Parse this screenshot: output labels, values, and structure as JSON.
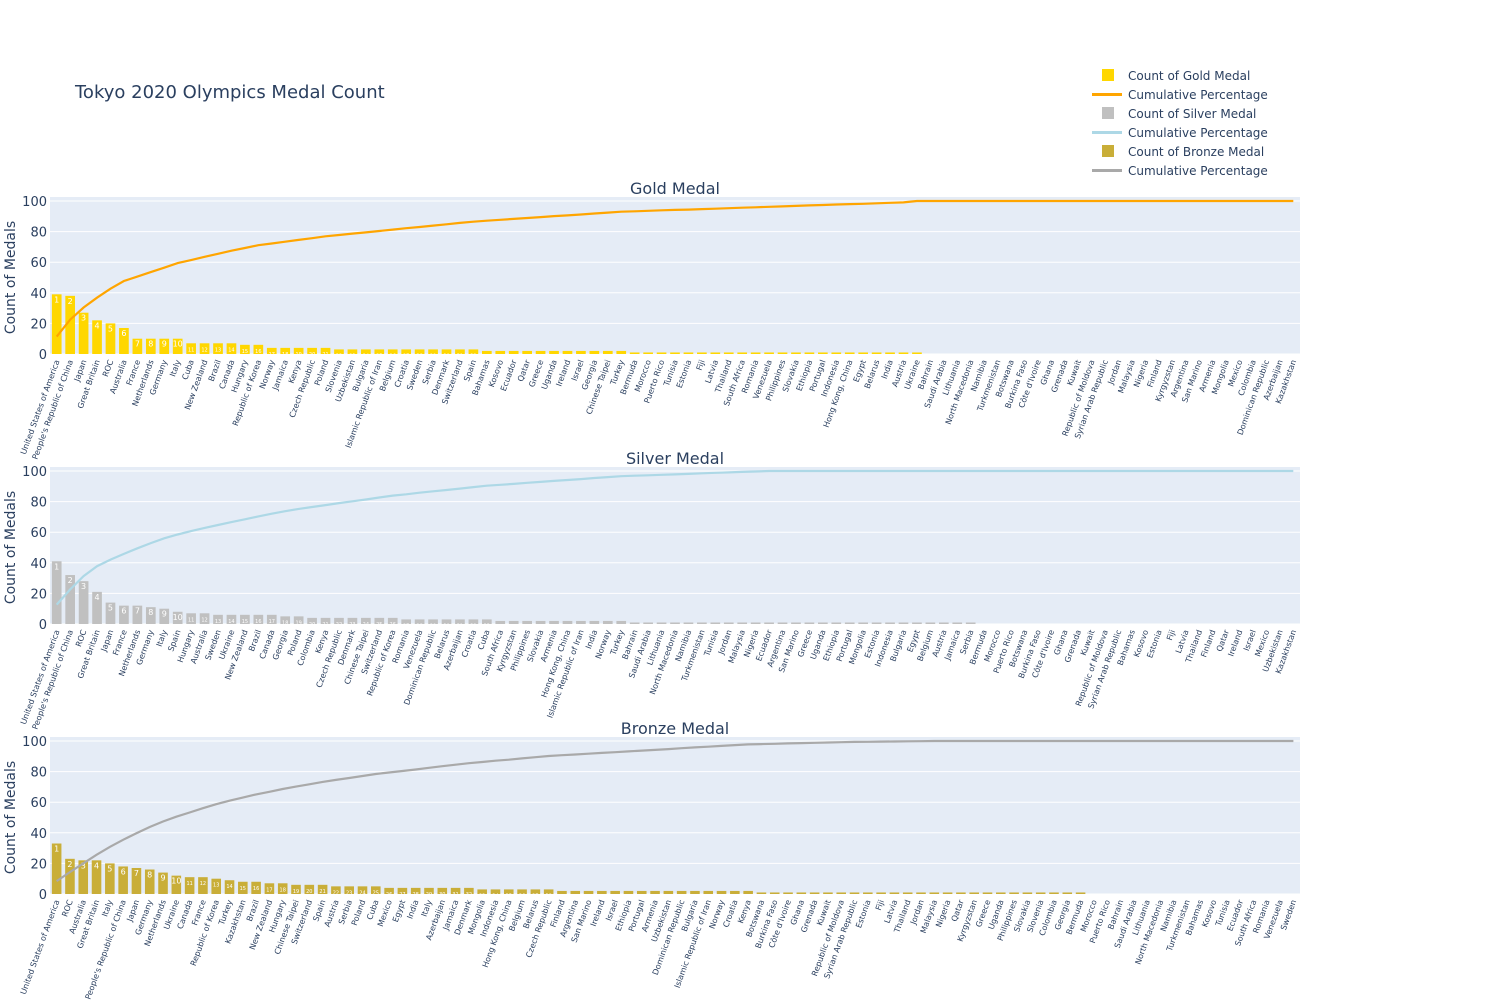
{
  "title": "Tokyo 2020 Olympics Medal Count",
  "legend": [
    {
      "label": "Count of Gold Medal",
      "kind": "bar",
      "color": "#FFD700"
    },
    {
      "label": "Cumulative Percentage",
      "kind": "line",
      "color": "#FFA500"
    },
    {
      "label": "Count of Silver Medal",
      "kind": "bar",
      "color": "#C0C0C0"
    },
    {
      "label": "Cumulative Percentage",
      "kind": "line",
      "color": "#ADD8E6"
    },
    {
      "label": "Count of Bronze Medal",
      "kind": "bar",
      "color": "#C9AE38"
    },
    {
      "label": "Cumulative Percentage",
      "kind": "line",
      "color": "#A9A9A9"
    }
  ],
  "chart_data": [
    {
      "type": "bar",
      "title": "Gold Medal",
      "ylabel": "Count of Medals",
      "ylim": [
        0,
        100
      ],
      "yticks": [
        0,
        20,
        40,
        60,
        80,
        100
      ],
      "grid": true,
      "bar_color": "#FFD700",
      "line_color": "#FFA500",
      "categories": [
        "United States of America",
        "People's Republic of China",
        "Japan",
        "Great Britain",
        "ROC",
        "Australia",
        "France",
        "Netherlands",
        "Germany",
        "Italy",
        "Cuba",
        "New Zealand",
        "Brazil",
        "Canada",
        "Hungary",
        "Republic of Korea",
        "Norway",
        "Jamaica",
        "Kenya",
        "Czech Republic",
        "Poland",
        "Slovenia",
        "Uzbekistan",
        "Bulgaria",
        "Islamic Republic of Iran",
        "Belgium",
        "Croatia",
        "Sweden",
        "Serbia",
        "Denmark",
        "Switzerland",
        "Spain",
        "Bahamas",
        "Kosovo",
        "Ecuador",
        "Qatar",
        "Greece",
        "Uganda",
        "Ireland",
        "Israel",
        "Georgia",
        "Chinese Taipei",
        "Turkey",
        "Bermuda",
        "Morocco",
        "Puerto Rico",
        "Tunisia",
        "Estonia",
        "Fiji",
        "Latvia",
        "Thailand",
        "South Africa",
        "Romania",
        "Venezuela",
        "Philippines",
        "Slovakia",
        "Ethiopia",
        "Portugal",
        "Indonesia",
        "Hong Kong, China",
        "Egypt",
        "Belarus",
        "India",
        "Austria",
        "Ukraine",
        "Bahrain",
        "Saudi Arabia",
        "Lithuania",
        "North Macedonia",
        "Namibia",
        "Turkmenistan",
        "Botswana",
        "Burkina Faso",
        "Côte d'Ivoire",
        "Ghana",
        "Grenada",
        "Kuwait",
        "Republic of Moldova",
        "Syrian Arab Republic",
        "Jordan",
        "Malaysia",
        "Nigeria",
        "Finland",
        "Kyrgyzstan",
        "Argentina",
        "San Marino",
        "Armenia",
        "Mongolia",
        "Mexico",
        "Colombia",
        "Dominican Republic",
        "Azerbaijan",
        "Kazakhstan"
      ],
      "values": [
        39,
        38,
        27,
        22,
        20,
        17,
        10,
        10,
        10,
        10,
        7,
        7,
        7,
        7,
        6,
        6,
        4,
        4,
        4,
        4,
        4,
        3,
        3,
        3,
        3,
        3,
        3,
        3,
        3,
        3,
        3,
        3,
        2,
        2,
        2,
        2,
        2,
        2,
        2,
        2,
        2,
        2,
        2,
        1,
        1,
        1,
        1,
        1,
        1,
        1,
        1,
        1,
        1,
        1,
        1,
        1,
        1,
        1,
        1,
        1,
        1,
        1,
        1,
        1,
        1,
        0,
        0,
        0,
        0,
        0,
        0,
        0,
        0,
        0,
        0,
        0,
        0,
        0,
        0,
        0,
        0,
        0,
        0,
        0,
        0,
        0,
        0,
        0,
        0,
        0,
        0,
        0,
        0
      ],
      "cumulative_percentage": [
        11.4,
        22.5,
        30.4,
        36.8,
        42.7,
        47.7,
        50.6,
        53.5,
        56.4,
        59.4,
        61.4,
        63.5,
        65.5,
        67.5,
        69.3,
        71.1,
        72.2,
        73.4,
        74.6,
        75.7,
        76.9,
        77.8,
        78.7,
        79.5,
        80.4,
        81.3,
        82.2,
        83.0,
        83.9,
        84.8,
        85.7,
        86.5,
        87.1,
        87.7,
        88.3,
        88.9,
        89.5,
        90.1,
        90.6,
        91.2,
        91.8,
        92.4,
        93.0,
        93.3,
        93.6,
        93.9,
        94.2,
        94.4,
        94.7,
        95.0,
        95.3,
        95.6,
        95.9,
        96.2,
        96.5,
        96.8,
        97.1,
        97.4,
        97.7,
        98.0,
        98.2,
        98.5,
        98.8,
        99.1,
        100,
        100,
        100,
        100,
        100,
        100,
        100,
        100,
        100,
        100,
        100,
        100,
        100,
        100,
        100,
        100,
        100,
        100,
        100,
        100,
        100,
        100,
        100,
        100,
        100,
        100,
        100,
        100,
        100
      ]
    },
    {
      "type": "bar",
      "title": "Silver Medal",
      "ylabel": "Count of Medals",
      "ylim": [
        0,
        100
      ],
      "yticks": [
        0,
        20,
        40,
        60,
        80,
        100
      ],
      "grid": true,
      "bar_color": "#C0C0C0",
      "line_color": "#ADD8E6",
      "categories": [
        "United States of America",
        "People's Republic of China",
        "ROC",
        "Great Britain",
        "Japan",
        "France",
        "Netherlands",
        "Germany",
        "Italy",
        "Spain",
        "Hungary",
        "Australia",
        "Sweden",
        "Ukraine",
        "New Zealand",
        "Brazil",
        "Canada",
        "Georgia",
        "Poland",
        "Colombia",
        "Kenya",
        "Czech Republic",
        "Denmark",
        "Chinese Taipei",
        "Switzerland",
        "Republic of Korea",
        "Romania",
        "Venezuela",
        "Dominican Republic",
        "Belarus",
        "Azerbaijan",
        "Croatia",
        "Cuba",
        "South Africa",
        "Kyrgyzstan",
        "Philippines",
        "Slovakia",
        "Armenia",
        "Hong Kong, China",
        "Islamic Republic of Iran",
        "India",
        "Norway",
        "Turkey",
        "Bahrain",
        "Saudi Arabia",
        "Lithuania",
        "North Macedonia",
        "Namibia",
        "Turkmenistan",
        "Tunisia",
        "Jordan",
        "Malaysia",
        "Nigeria",
        "Ecuador",
        "Argentina",
        "San Marino",
        "Greece",
        "Uganda",
        "Ethiopia",
        "Portugal",
        "Mongolia",
        "Estonia",
        "Indonesia",
        "Bulgaria",
        "Egypt",
        "Belgium",
        "Austria",
        "Jamaica",
        "Serbia",
        "Bermuda",
        "Morocco",
        "Puerto Rico",
        "Botswana",
        "Burkina Faso",
        "Côte d'Ivoire",
        "Ghana",
        "Grenada",
        "Kuwait",
        "Republic of Moldova",
        "Syrian Arab Republic",
        "Bahamas",
        "Kosovo",
        "Estonia",
        "Fiji",
        "Latvia",
        "Thailand",
        "Finland",
        "Qatar",
        "Ireland",
        "Israel",
        "Mexico",
        "Uzbekistan",
        "Kazakhstan"
      ],
      "values": [
        41,
        32,
        28,
        21,
        14,
        12,
        12,
        11,
        10,
        8,
        7,
        7,
        6,
        6,
        6,
        6,
        6,
        5,
        5,
        4,
        4,
        4,
        4,
        4,
        4,
        4,
        3,
        3,
        3,
        3,
        3,
        3,
        3,
        2,
        2,
        2,
        2,
        2,
        2,
        2,
        2,
        2,
        2,
        1,
        1,
        1,
        1,
        1,
        1,
        1,
        1,
        1,
        1,
        1,
        1,
        1,
        1,
        1,
        1,
        1,
        1,
        1,
        1,
        1,
        1,
        1,
        1,
        1,
        1,
        0,
        0,
        0,
        0,
        0,
        0,
        0,
        0,
        0,
        0,
        0,
        0,
        0,
        0,
        0,
        0,
        0,
        0,
        0,
        0,
        0,
        0,
        0,
        0
      ],
      "cumulative_percentage": [
        12.7,
        22.6,
        31.3,
        37.8,
        42.1,
        45.8,
        49.5,
        52.9,
        56.0,
        58.5,
        60.7,
        62.8,
        64.7,
        66.6,
        68.4,
        70.3,
        72.1,
        73.7,
        75.2,
        76.5,
        77.7,
        79.0,
        80.2,
        81.4,
        82.7,
        83.9,
        84.8,
        85.8,
        86.7,
        87.6,
        88.5,
        89.5,
        90.4,
        91.0,
        91.6,
        92.3,
        92.9,
        93.5,
        94.1,
        94.7,
        95.4,
        96.0,
        96.6,
        96.9,
        97.2,
        97.5,
        97.8,
        98.1,
        98.5,
        98.8,
        99.1,
        99.4,
        99.7,
        100,
        100,
        100,
        100,
        100,
        100,
        100,
        100,
        100,
        100,
        100,
        100,
        100,
        100,
        100,
        100,
        100,
        100,
        100,
        100,
        100,
        100,
        100,
        100,
        100,
        100,
        100,
        100,
        100,
        100,
        100,
        100,
        100,
        100,
        100,
        100,
        100,
        100,
        100,
        100
      ]
    },
    {
      "type": "bar",
      "title": "Bronze Medal",
      "ylabel": "Count of Medals",
      "ylim": [
        0,
        100
      ],
      "yticks": [
        0,
        20,
        40,
        60,
        80,
        100
      ],
      "grid": true,
      "bar_color": "#C9AE38",
      "line_color": "#A9A9A9",
      "categories": [
        "United States of America",
        "ROC",
        "Australia",
        "Great Britain",
        "Italy",
        "People's Republic of China",
        "Japan",
        "Germany",
        "Netherlands",
        "Ukraine",
        "Canada",
        "France",
        "Republic of Korea",
        "Turkey",
        "Kazakhstan",
        "Brazil",
        "New Zealand",
        "Hungary",
        "Chinese Taipei",
        "Switzerland",
        "Spain",
        "Austria",
        "Serbia",
        "Poland",
        "Cuba",
        "Mexico",
        "Egypt",
        "India",
        "Italy",
        "Azerbaijan",
        "Jamaica",
        "Denmark",
        "Mongolia",
        "Indonesia",
        "Hong Kong, China",
        "Belgium",
        "Belarus",
        "Czech Republic",
        "Finland",
        "Argentina",
        "San Marino",
        "Ireland",
        "Israel",
        "Ethiopia",
        "Portugal",
        "Armenia",
        "Uzbekistan",
        "Dominican Republic",
        "Bulgaria",
        "Islamic Republic of Iran",
        "Norway",
        "Croatia",
        "Kenya",
        "Botswana",
        "Burkina Faso",
        "Côte d'Ivoire",
        "Ghana",
        "Grenada",
        "Kuwait",
        "Republic of Moldova",
        "Syrian Arab Republic",
        "Estonia",
        "Fiji",
        "Latvia",
        "Thailand",
        "Jordan",
        "Malaysia",
        "Nigeria",
        "Qatar",
        "Kyrgyzstan",
        "Greece",
        "Uganda",
        "Philippines",
        "Slovakia",
        "Slovenia",
        "Colombia",
        "Georgia",
        "Bermuda",
        "Morocco",
        "Puerto Rico",
        "Bahrain",
        "Saudi Arabia",
        "Lithuania",
        "North Macedonia",
        "Namibia",
        "Turkmenistan",
        "Bahamas",
        "Kosovo",
        "Tunisia",
        "Ecuador",
        "South Africa",
        "Romania",
        "Venezuela",
        "Sweden"
      ],
      "values": [
        33,
        23,
        22,
        22,
        20,
        18,
        17,
        16,
        14,
        12,
        11,
        11,
        10,
        9,
        8,
        8,
        7,
        7,
        6,
        6,
        6,
        5,
        5,
        5,
        5,
        4,
        4,
        4,
        4,
        4,
        4,
        4,
        3,
        3,
        3,
        3,
        3,
        3,
        2,
        2,
        2,
        2,
        2,
        2,
        2,
        2,
        2,
        2,
        2,
        2,
        2,
        2,
        2,
        1,
        1,
        1,
        1,
        1,
        1,
        1,
        1,
        1,
        1,
        1,
        1,
        1,
        1,
        1,
        1,
        1,
        1,
        1,
        1,
        1,
        1,
        1,
        1,
        1,
        0,
        0,
        0,
        0,
        0,
        0,
        0,
        0,
        0,
        0,
        0,
        0,
        0,
        0,
        0,
        0
      ],
      "cumulative_percentage": [
        8.4,
        14.3,
        20.0,
        25.6,
        30.8,
        35.4,
        39.7,
        43.8,
        47.4,
        50.5,
        53.3,
        56.1,
        58.7,
        61.0,
        63.0,
        65.1,
        66.8,
        68.6,
        70.2,
        71.7,
        73.3,
        74.6,
        75.8,
        77.1,
        78.4,
        79.4,
        80.4,
        81.4,
        82.5,
        83.5,
        84.5,
        85.5,
        86.3,
        87.1,
        87.8,
        88.6,
        89.4,
        90.2,
        90.7,
        91.2,
        91.7,
        92.2,
        92.7,
        93.2,
        93.7,
        94.2,
        94.7,
        95.3,
        95.8,
        96.3,
        96.8,
        97.3,
        97.8,
        98.0,
        98.2,
        98.4,
        98.6,
        98.8,
        99.0,
        99.2,
        99.4,
        99.5,
        99.6,
        99.7,
        99.8,
        99.9,
        100,
        100,
        100,
        100,
        100,
        100,
        100,
        100,
        100,
        100,
        100,
        100,
        100,
        100,
        100,
        100,
        100,
        100,
        100,
        100,
        100,
        100,
        100,
        100,
        100,
        100,
        100,
        100
      ]
    }
  ]
}
